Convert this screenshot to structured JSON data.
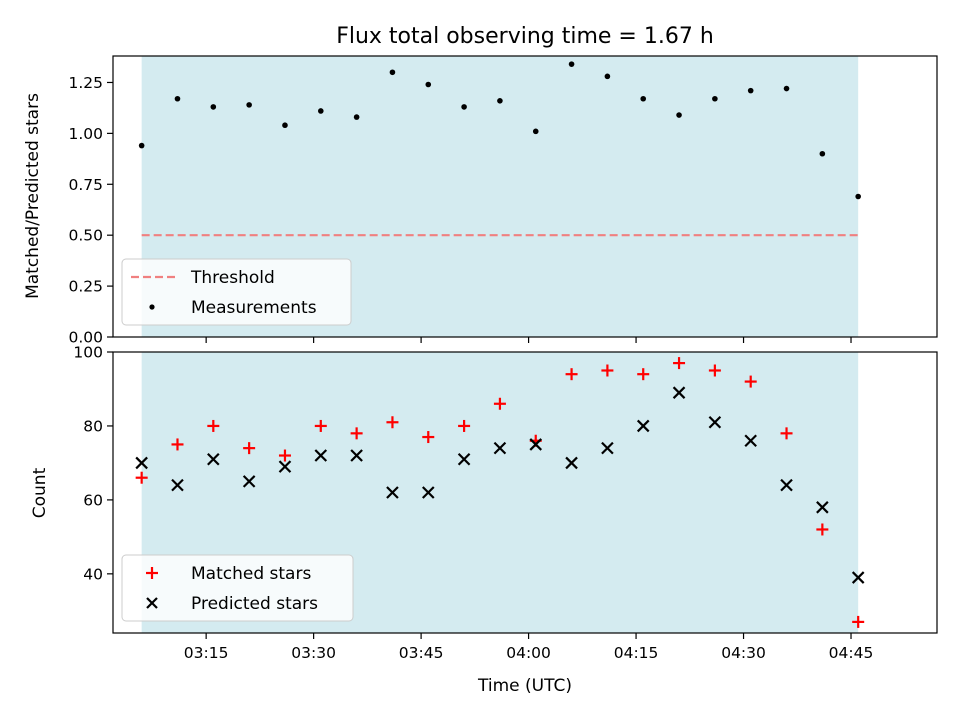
{
  "chart_data": [
    {
      "type": "scatter",
      "title": "Flux total observing time = 1.67 h",
      "xlabel": "",
      "ylabel": "Matched/Predicted stars",
      "ylim": [
        0,
        1.38
      ],
      "yticks": [
        "0.00",
        "0.25",
        "0.50",
        "0.75",
        "1.00",
        "1.25"
      ],
      "ytick_values": [
        0,
        0.25,
        0.5,
        0.75,
        1.0,
        1.25
      ],
      "threshold": 0.5,
      "shaded_span": [
        "03:06",
        "04:46"
      ],
      "legend": {
        "placement": "lower-left",
        "entries": [
          "Threshold",
          "Measurements"
        ]
      },
      "colors": {
        "threshold": "#f08080",
        "measurements": "#000000",
        "span": "#d4ebf0"
      },
      "series": [
        {
          "name": "Measurements",
          "x": [
            "03:06",
            "03:11",
            "03:16",
            "03:21",
            "03:26",
            "03:31",
            "03:36",
            "03:41",
            "03:46",
            "03:51",
            "03:56",
            "04:01",
            "04:06",
            "04:11",
            "04:16",
            "04:21",
            "04:26",
            "04:31",
            "04:36",
            "04:41",
            "04:46"
          ],
          "values": [
            0.94,
            1.17,
            1.13,
            1.14,
            1.04,
            1.11,
            1.08,
            1.3,
            1.24,
            1.13,
            1.16,
            1.01,
            1.34,
            1.28,
            1.17,
            1.09,
            1.17,
            1.21,
            1.22,
            0.9,
            0.69
          ]
        }
      ]
    },
    {
      "type": "scatter",
      "title": "",
      "xlabel": "Time (UTC)",
      "ylabel": "Count",
      "ylim": [
        24,
        100
      ],
      "xlim": [
        "03:02",
        "04:57"
      ],
      "xticks": [
        "03:15",
        "03:30",
        "03:45",
        "04:00",
        "04:15",
        "04:30",
        "04:45"
      ],
      "yticks": [
        "40",
        "60",
        "80",
        "100"
      ],
      "ytick_values": [
        40,
        60,
        80,
        100
      ],
      "legend": {
        "placement": "lower-left",
        "entries": [
          "Matched stars",
          "Predicted stars"
        ]
      },
      "colors": {
        "matched": "#ff0000",
        "predicted": "#000000",
        "span": "#d4ebf0"
      },
      "series": [
        {
          "name": "Matched stars",
          "x": [
            "03:06",
            "03:11",
            "03:16",
            "03:21",
            "03:26",
            "03:31",
            "03:36",
            "03:41",
            "03:46",
            "03:51",
            "03:56",
            "04:01",
            "04:06",
            "04:11",
            "04:16",
            "04:21",
            "04:26",
            "04:31",
            "04:36",
            "04:41",
            "04:46"
          ],
          "values": [
            66,
            75,
            80,
            74,
            72,
            80,
            78,
            81,
            77,
            80,
            86,
            76,
            94,
            95,
            94,
            97,
            95,
            92,
            78,
            52,
            27
          ]
        },
        {
          "name": "Predicted stars",
          "x": [
            "03:06",
            "03:11",
            "03:16",
            "03:21",
            "03:26",
            "03:31",
            "03:36",
            "03:41",
            "03:46",
            "03:51",
            "03:56",
            "04:01",
            "04:06",
            "04:11",
            "04:16",
            "04:21",
            "04:26",
            "04:31",
            "04:36",
            "04:41",
            "04:46"
          ],
          "values": [
            70,
            64,
            71,
            65,
            69,
            72,
            72,
            62,
            62,
            71,
            74,
            75,
            70,
            74,
            80,
            89,
            81,
            76,
            64,
            58,
            39
          ]
        }
      ]
    }
  ]
}
